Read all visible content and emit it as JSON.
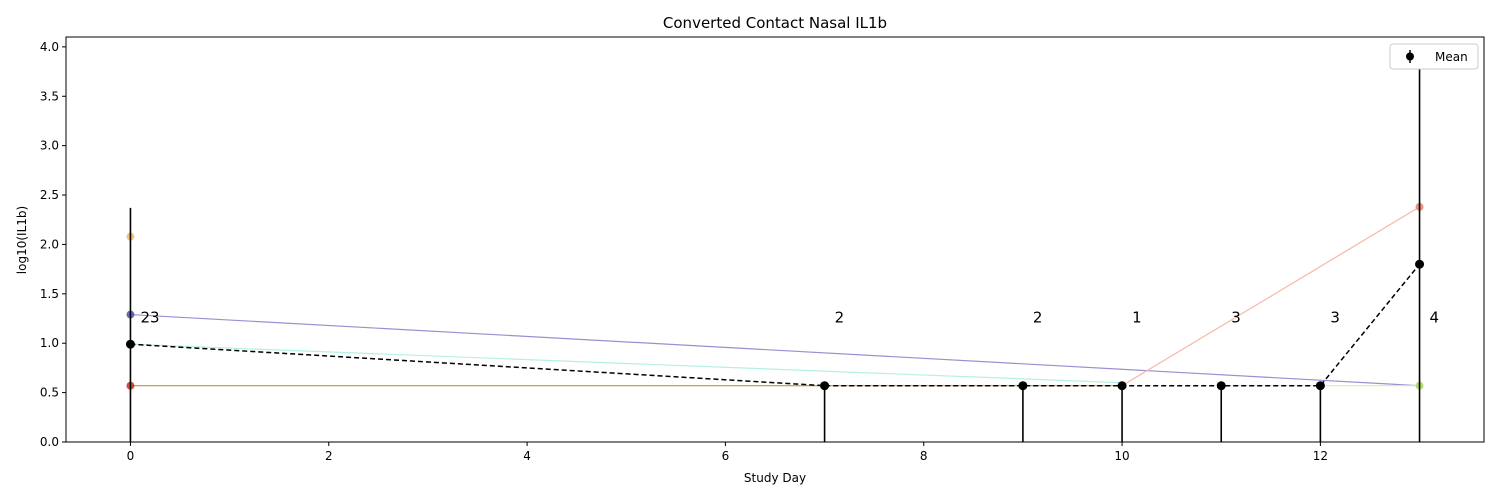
{
  "chart_data": {
    "type": "line",
    "title": "Converted Contact Nasal IL1b",
    "xlabel": "Study Day",
    "ylabel": "log10(IL1b)",
    "xlim": [
      -0.65,
      13.65
    ],
    "ylim": [
      0.0,
      4.1
    ],
    "xticks": [
      0,
      2,
      4,
      6,
      8,
      10,
      12
    ],
    "xtick_labels": [
      "0",
      "2",
      "4",
      "6",
      "8",
      "10",
      "12"
    ],
    "yticks": [
      0.0,
      0.5,
      1.0,
      1.5,
      2.0,
      2.5,
      3.0,
      3.5,
      4.0
    ],
    "ytick_labels": [
      "0.0",
      "0.5",
      "1.0",
      "1.5",
      "2.0",
      "2.5",
      "3.0",
      "3.5",
      "4.0"
    ],
    "grid": false,
    "legend": {
      "placement": "top-right",
      "entries": [
        "Mean"
      ]
    },
    "series": [
      {
        "color": "#9b8fd0",
        "x": [
          0,
          13
        ],
        "y": [
          1.29,
          0.57
        ]
      },
      {
        "color": "#b5f0e6",
        "x": [
          0,
          10
        ],
        "y": [
          0.99,
          0.6
        ]
      },
      {
        "color": "#f5b8a6",
        "x": [
          0,
          10,
          13
        ],
        "y": [
          0.57,
          0.57,
          2.38
        ]
      },
      {
        "color": "#c9a04a",
        "x": [
          0,
          10
        ],
        "y": [
          0.57,
          0.57
        ]
      },
      {
        "color": "#d8f0a6",
        "x": [
          11,
          13
        ],
        "y": [
          0.57,
          0.57
        ]
      }
    ],
    "points": [
      {
        "x": 0,
        "y": 2.08,
        "color": "#f5b860"
      },
      {
        "x": 0,
        "y": 1.29,
        "color": "#5050b0"
      },
      {
        "x": 0,
        "y": 0.57,
        "color": "#c03020"
      },
      {
        "x": 13,
        "y": 2.38,
        "color": "#e88070"
      },
      {
        "x": 13,
        "y": 0.57,
        "color": "#a8d860"
      }
    ],
    "mean": {
      "name": "Mean",
      "x": [
        0,
        7,
        9,
        10,
        11,
        12,
        13
      ],
      "y": [
        0.99,
        0.57,
        0.57,
        0.57,
        0.57,
        0.57,
        1.8
      ],
      "err_low": [
        0.0,
        0.0,
        0.0,
        0.0,
        0.0,
        0.0,
        0.0
      ],
      "err_high": [
        2.37,
        0.57,
        0.57,
        0.57,
        0.57,
        0.57,
        3.87
      ]
    },
    "counts": [
      {
        "x": 0,
        "label": "23"
      },
      {
        "x": 7,
        "label": "2"
      },
      {
        "x": 9,
        "label": "2"
      },
      {
        "x": 10,
        "label": "1"
      },
      {
        "x": 11,
        "label": "3"
      },
      {
        "x": 12,
        "label": "3"
      },
      {
        "x": 13,
        "label": "4"
      }
    ],
    "count_y": 1.26
  }
}
